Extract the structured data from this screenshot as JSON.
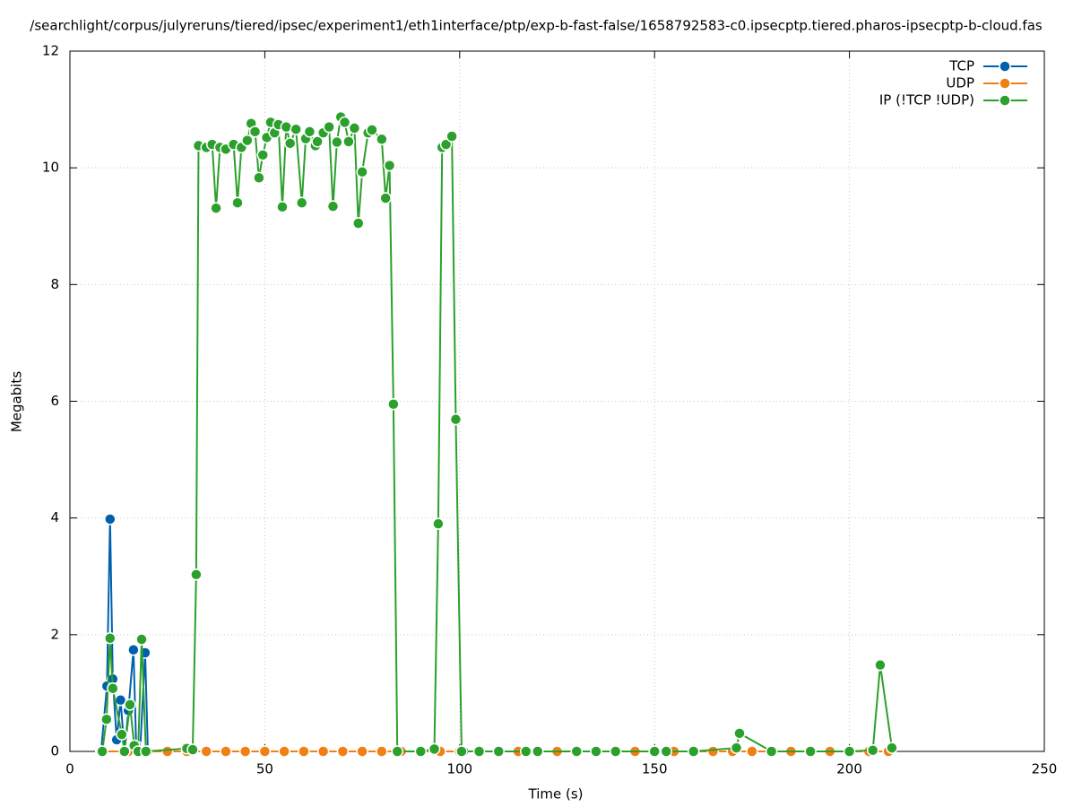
{
  "chart_data": {
    "type": "line",
    "title": "/searchlight/corpus/julyreruns/tiered/ipsec/experiment1/eth1interface/ptp/exp-b-fast-false/1658792583-c0.ipsecptp.tiered.pharos-ipsecptp-b-cloud.fas",
    "x_label": "Time (s)",
    "y_label": "Megabits",
    "xlim": [
      0,
      250
    ],
    "xticks": [
      0,
      50,
      100,
      150,
      200,
      250
    ],
    "ylim": [
      0,
      12
    ],
    "yticks": [
      0,
      2,
      4,
      6,
      8,
      10,
      12
    ],
    "grid": true,
    "legend": "top-right",
    "series": [
      {
        "name": "TCP",
        "color": "#0060ad",
        "x": [
          8,
          9.5,
          10.3,
          11,
          12,
          13,
          14,
          15,
          16.3,
          17,
          18,
          19.3,
          20,
          30,
          85,
          101,
          150,
          206
        ],
        "values": [
          0,
          1.12,
          3.98,
          1.24,
          0.2,
          0.88,
          0,
          0.7,
          1.74,
          0.1,
          0,
          1.69,
          0,
          0,
          0,
          0,
          0,
          0
        ]
      },
      {
        "name": "UDP",
        "color": "#f07f14",
        "x": [
          8,
          15,
          20,
          25,
          30,
          35,
          40,
          45,
          50,
          55,
          60,
          65,
          70,
          75,
          80,
          85,
          90,
          95,
          100,
          105,
          110,
          115,
          120,
          125,
          130,
          135,
          140,
          145,
          150,
          155,
          160,
          165,
          170,
          175,
          180,
          185,
          190,
          195,
          200,
          205,
          210
        ],
        "values": [
          0,
          0,
          0,
          0,
          0,
          0,
          0,
          0,
          0,
          0,
          0,
          0,
          0,
          0,
          0,
          0,
          0,
          0,
          0,
          0,
          0,
          0,
          0,
          0,
          0,
          0,
          0,
          0,
          0,
          0,
          0,
          0,
          0,
          0,
          0,
          0,
          0,
          0,
          0,
          0,
          0
        ]
      },
      {
        "name": "IP (!TCP  !UDP)",
        "color": "#2ca02c",
        "x": [
          8.3,
          9.4,
          10.3,
          11,
          13.3,
          14,
          15.4,
          16.5,
          17.5,
          18.4,
          19.5,
          30,
          31.5,
          32.4,
          33,
          35,
          36.5,
          37.5,
          38.5,
          40,
          42,
          43,
          44,
          45.5,
          46.5,
          47.5,
          48.5,
          49.5,
          50.5,
          51.5,
          52.5,
          53.5,
          54.5,
          55.5,
          56.5,
          58,
          59.5,
          60.5,
          61.5,
          63,
          63.5,
          65,
          66.5,
          67.5,
          68.5,
          69.5,
          70.5,
          71.5,
          73,
          74,
          75,
          76.5,
          77.5,
          80,
          81,
          82,
          83,
          84,
          90,
          93.5,
          94.5,
          95.5,
          96.5,
          98,
          99,
          100.5,
          105,
          110,
          117,
          120,
          130,
          135,
          140,
          150,
          153,
          160,
          171,
          171.8,
          180,
          190,
          200,
          206,
          207.9,
          210.9
        ],
        "values": [
          0,
          0.55,
          1.94,
          1.08,
          0.29,
          0,
          0.8,
          0.1,
          0,
          1.92,
          0,
          0.05,
          0.03,
          3.03,
          10.38,
          10.35,
          10.4,
          9.31,
          10.35,
          10.32,
          10.4,
          9.4,
          10.35,
          10.47,
          10.76,
          10.62,
          9.83,
          10.22,
          10.52,
          10.78,
          10.6,
          10.74,
          9.33,
          10.7,
          10.42,
          10.66,
          9.4,
          10.5,
          10.62,
          10.38,
          10.45,
          10.6,
          10.7,
          9.34,
          10.44,
          10.87,
          10.78,
          10.45,
          10.68,
          9.05,
          9.93,
          10.6,
          10.65,
          10.49,
          9.48,
          10.04,
          5.95,
          0,
          0,
          0.04,
          3.9,
          10.35,
          10.4,
          10.54,
          5.69,
          0,
          0,
          0,
          0,
          0,
          0,
          0,
          0,
          0,
          0,
          0,
          0.06,
          0.31,
          0,
          0,
          0,
          0.02,
          1.48,
          0.06
        ]
      }
    ]
  }
}
